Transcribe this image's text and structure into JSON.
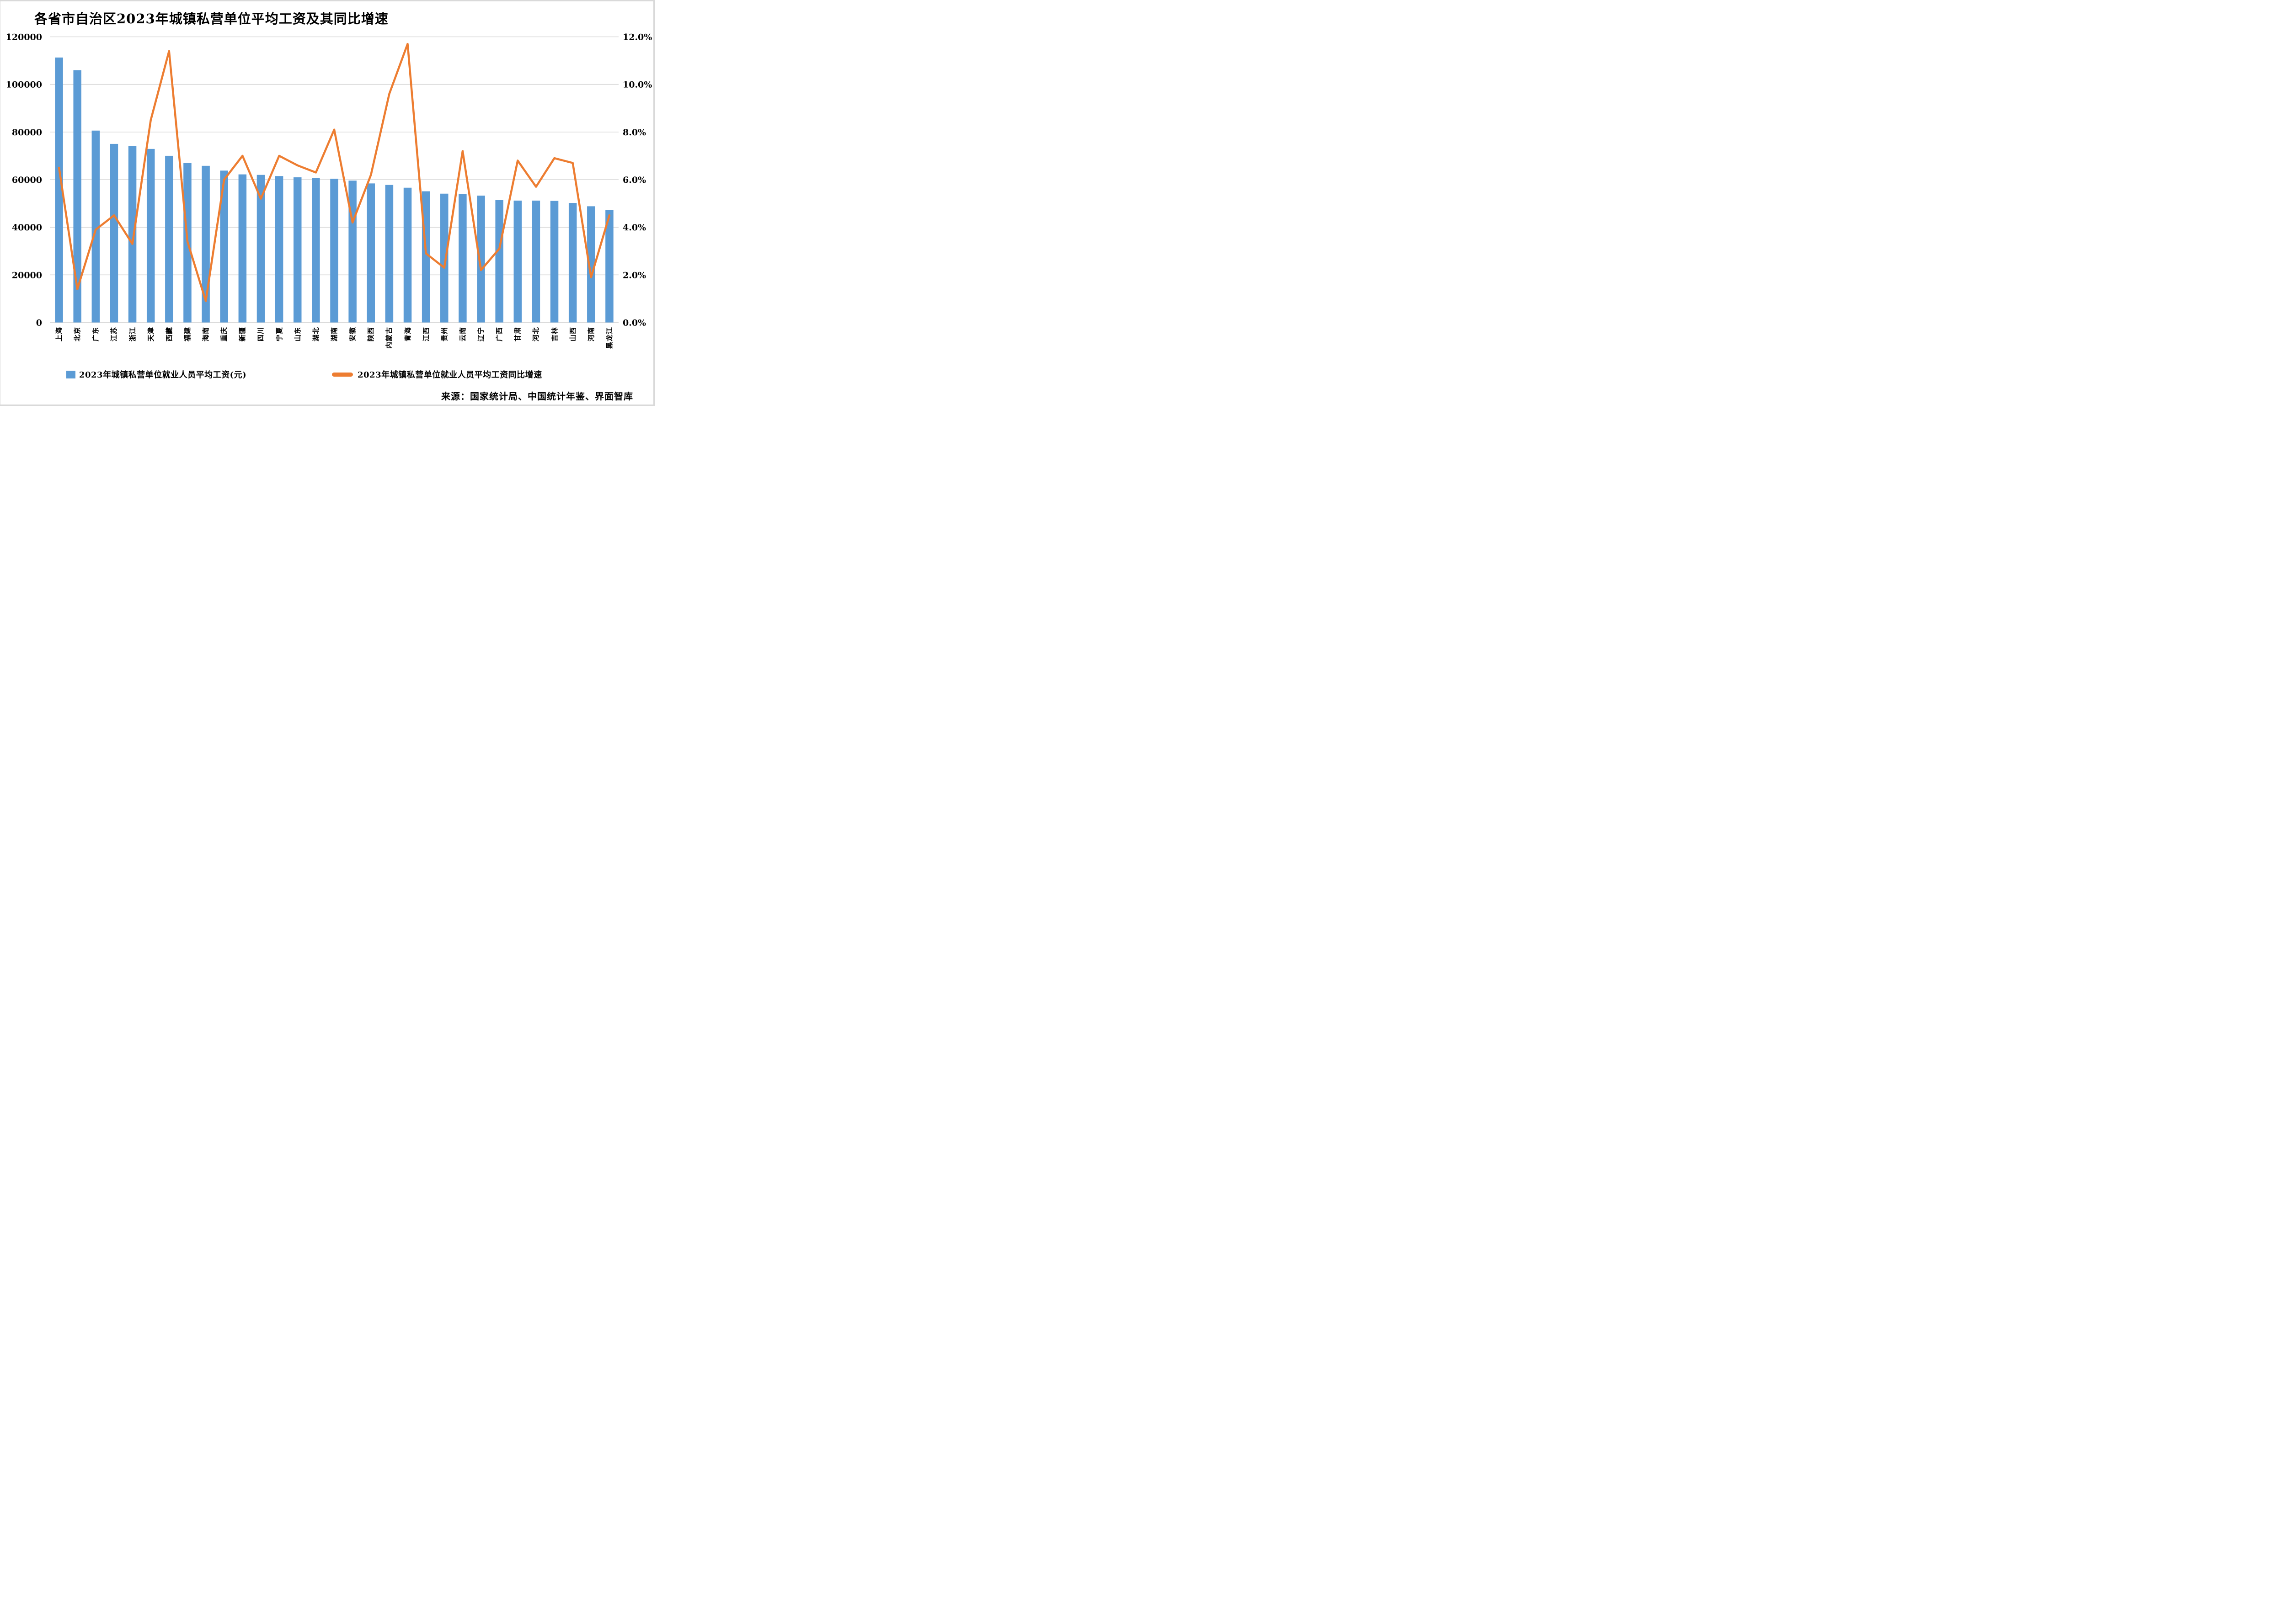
{
  "title": "各省市自治区2023年城镇私营单位平均工资及其同比增速",
  "source_note": "来源：国家统计局、中国统计年鉴、界面智库",
  "legend": {
    "wage_label": "2023年城镇私营单位就业人员平均工资(元)",
    "growth_label": "2023年城镇私营单位就业人员平均工资同比增速"
  },
  "colors": {
    "bar": "#5B9BD5",
    "line": "#ED7D31",
    "gridline": "#D9D9D9",
    "frame": "#D9D9D9",
    "background": "#FFFFFF",
    "text": "#000000"
  },
  "axes": {
    "left_ticks": [
      "120000",
      "100000",
      "80000",
      "60000",
      "40000",
      "20000",
      "0"
    ],
    "right_ticks": [
      "12.0%",
      "10.0%",
      "8.0%",
      "6.0%",
      "4.0%",
      "2.0%",
      "0.0%"
    ]
  },
  "chart_data": {
    "type": "bar+line",
    "title": "各省市自治区2023年城镇私营单位平均工资及其同比增速",
    "categories": [
      "上海",
      "北京",
      "广东",
      "江苏",
      "浙江",
      "天津",
      "西藏",
      "福建",
      "海南",
      "重庆",
      "新疆",
      "四川",
      "宁夏",
      "山东",
      "湖北",
      "湖南",
      "安徽",
      "陕西",
      "内蒙古",
      "青海",
      "江西",
      "贵州",
      "云南",
      "辽宁",
      "广西",
      "甘肃",
      "河北",
      "吉林",
      "山西",
      "河南",
      "黑龙江"
    ],
    "series": [
      {
        "name": "2023年城镇私营单位就业人员平均工资(元)",
        "type": "bar",
        "axis": "left",
        "color": "#5B9BD5",
        "values": [
          111300,
          106000,
          80600,
          75000,
          74200,
          72900,
          70000,
          67000,
          65800,
          63800,
          62200,
          62000,
          61500,
          61000,
          60600,
          60400,
          59600,
          58400,
          57800,
          56600,
          55100,
          54100,
          53900,
          53300,
          51400,
          51200,
          51200,
          51100,
          50200,
          48800,
          47300
        ]
      },
      {
        "name": "2023年城镇私营单位就业人员平均工资同比增速",
        "type": "line",
        "axis": "right",
        "unit": "%",
        "color": "#ED7D31",
        "values": [
          6.5,
          1.4,
          3.9,
          4.5,
          3.3,
          8.5,
          11.4,
          3.4,
          0.9,
          6.0,
          7.0,
          5.2,
          7.0,
          6.6,
          6.3,
          8.1,
          4.2,
          6.2,
          9.6,
          11.7,
          2.9,
          2.3,
          7.2,
          2.2,
          3.1,
          6.8,
          5.7,
          6.9,
          6.7,
          1.9,
          4.5
        ]
      }
    ],
    "y_left": {
      "min": 0,
      "max": 120000,
      "step": 20000
    },
    "y_right": {
      "min": 0,
      "max": 12,
      "step": 2,
      "unit": "%"
    },
    "grid": true,
    "legend_position": "bottom"
  }
}
